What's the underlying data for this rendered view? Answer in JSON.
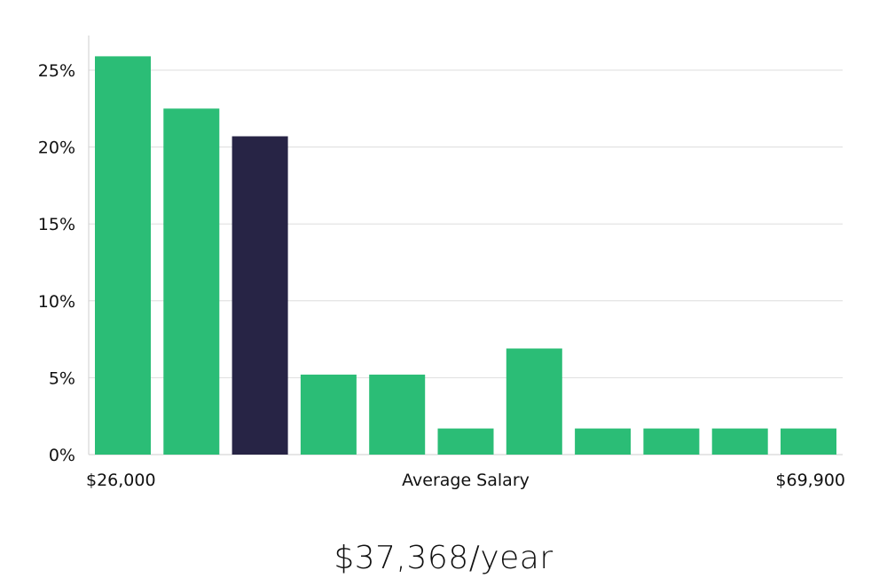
{
  "headline": {
    "average_salary": "$37,368/year"
  },
  "colors": {
    "bar": "#2bbd76",
    "highlight_bar": "#272445",
    "grid": "#dddddd",
    "axis": "#cccccc"
  },
  "chart_data": {
    "type": "bar",
    "title": "",
    "xlabel": "Average Salary",
    "ylabel": "",
    "x_range_labels": {
      "min": "$26,000",
      "max": "$69,900"
    },
    "categories": [
      "1",
      "2",
      "3",
      "4",
      "5",
      "6",
      "7",
      "8",
      "9",
      "10",
      "11"
    ],
    "values": [
      25.9,
      22.5,
      20.7,
      5.2,
      5.2,
      1.7,
      6.9,
      1.7,
      1.7,
      1.7,
      1.7
    ],
    "highlight_index": 2,
    "ylim": [
      0,
      27
    ],
    "yticks": [
      0,
      5,
      10,
      15,
      20,
      25
    ],
    "ytick_labels": [
      "0%",
      "5%",
      "10%",
      "15%",
      "20%",
      "25%"
    ],
    "grid": true,
    "legend": "none"
  }
}
